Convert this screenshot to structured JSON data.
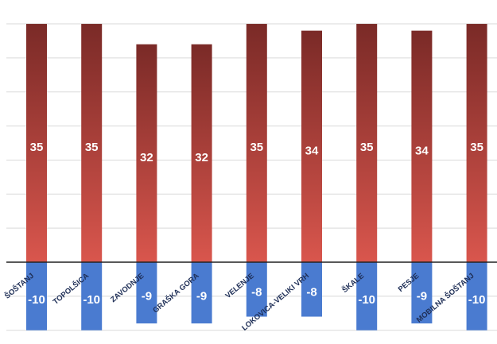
{
  "chart_data": {
    "type": "bar",
    "categories": [
      "ŠOŠTANJ",
      "TOPOLŠICA",
      "ZAVODNJE",
      "GRAŠKA GORA",
      "VELENJE",
      "LOKOVICA-VELIKI VRH",
      "ŠKALE",
      "PESJE",
      "MOBILNA ŠOŠTANJ"
    ],
    "series": [
      {
        "values": [
          35,
          35,
          32,
          32,
          35,
          34,
          35,
          34,
          35
        ]
      },
      {
        "values": [
          -10,
          -10,
          -9,
          -9,
          -8,
          -8,
          -10,
          -9,
          -10
        ]
      }
    ],
    "ylim": [
      -10,
      35
    ],
    "grid": true,
    "colors": {
      "max_top": "#7a2a27",
      "max_bottom": "#d9564d",
      "min": "#4a7bd0",
      "gridline": "#d9d9d9",
      "zero_line": "#222222",
      "category_text": "#1f2f57"
    }
  }
}
